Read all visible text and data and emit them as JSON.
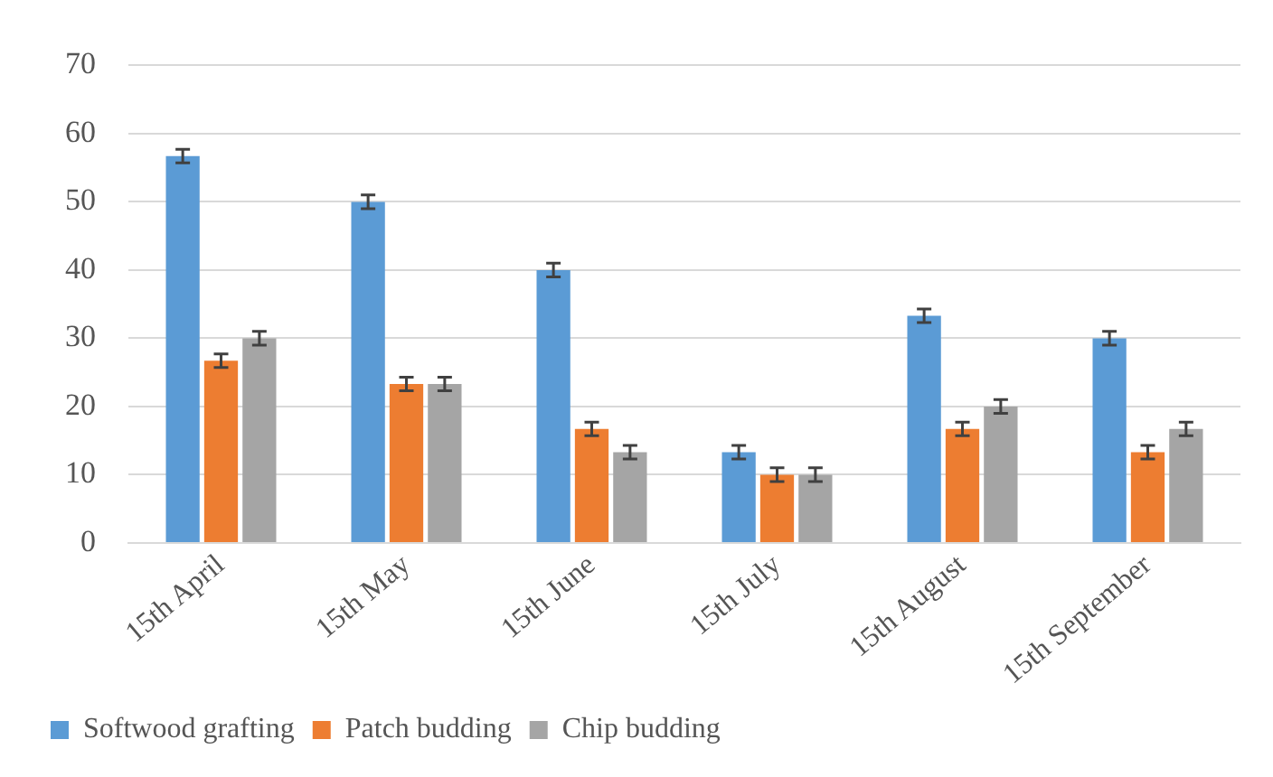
{
  "chart_data": {
    "type": "bar",
    "categories": [
      "15th April",
      "15th May",
      "15th June",
      "15th July",
      "15th August",
      "15th September"
    ],
    "series": [
      {
        "name": "Softwood grafting",
        "color": "#5b9bd5",
        "values": [
          56.7,
          50,
          40,
          13.3,
          33.3,
          30
        ],
        "errors": [
          1,
          1,
          1,
          1,
          1,
          1
        ]
      },
      {
        "name": "Patch budding",
        "color": "#ed7d31",
        "values": [
          26.7,
          23.3,
          16.7,
          10,
          16.7,
          13.3
        ],
        "errors": [
          1,
          1,
          1,
          1,
          1,
          1
        ]
      },
      {
        "name": "Chip budding",
        "color": "#a5a5a5",
        "values": [
          30,
          23.3,
          13.3,
          10,
          20,
          16.7
        ],
        "errors": [
          1,
          1,
          1,
          1,
          1,
          1
        ]
      }
    ],
    "ylim": [
      0,
      70
    ],
    "yticks": [
      0,
      10,
      20,
      30,
      40,
      50,
      60,
      70
    ],
    "grid": "y",
    "legend": "bottom"
  }
}
